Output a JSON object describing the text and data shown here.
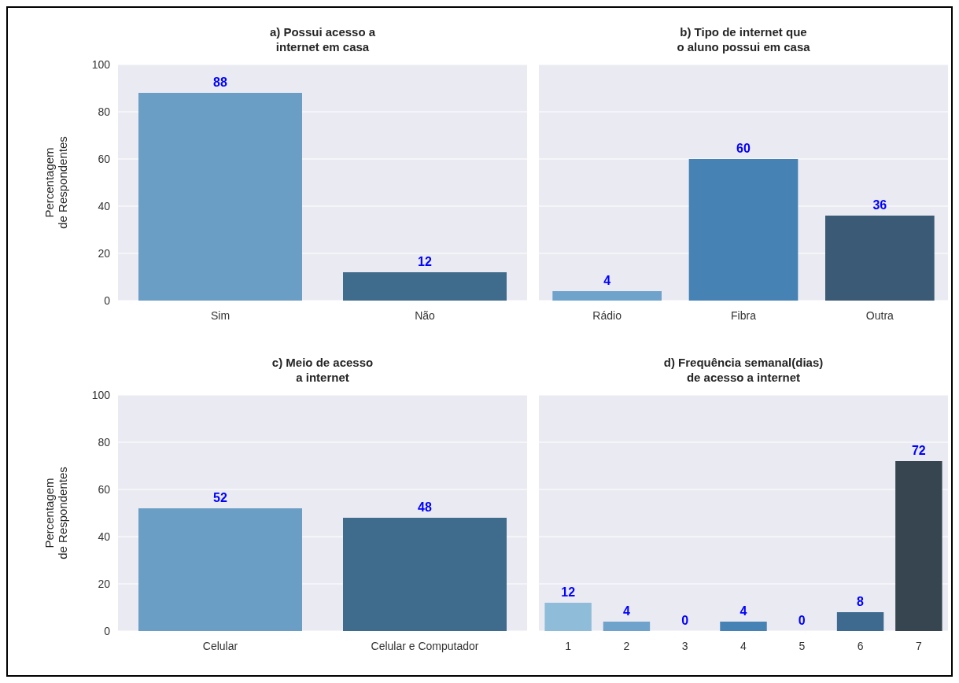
{
  "chart_data": [
    {
      "type": "bar",
      "title": "a) Possui acesso a\ninternet em casa",
      "ylabel": "Percentagem\nde Respondentes",
      "categories": [
        "Sim",
        "Não"
      ],
      "values": [
        88,
        12
      ],
      "colors": [
        "#6a9ec5",
        "#3f6b8c"
      ],
      "ylim": [
        0,
        100
      ],
      "yticks": [
        0,
        20,
        40,
        60,
        80,
        100
      ],
      "grid": "y",
      "data_labels": true
    },
    {
      "type": "bar",
      "title": "b) Tipo de internet que\no aluno possui em casa",
      "categories": [
        "Rádio",
        "Fibra",
        "Outra"
      ],
      "values": [
        4,
        60,
        36
      ],
      "colors": [
        "#6fa3cc",
        "#4682b4",
        "#3a5a75"
      ],
      "ylim": [
        0,
        100
      ],
      "yticks": [
        0,
        20,
        40,
        60,
        80,
        100
      ],
      "grid": "y",
      "data_labels": true,
      "tick_labels": "x"
    },
    {
      "type": "bar",
      "title": "c) Meio de acesso\na internet",
      "ylabel": "Percentagem\nde Respondentes",
      "categories": [
        "Celular",
        "Celular e Computador"
      ],
      "values": [
        52,
        48
      ],
      "colors": [
        "#6a9ec5",
        "#3f6b8c"
      ],
      "ylim": [
        0,
        100
      ],
      "yticks": [
        0,
        20,
        40,
        60,
        80,
        100
      ],
      "grid": "y",
      "data_labels": true
    },
    {
      "type": "bar",
      "title": "d) Frequência semanal(dias)\nde acesso a internet",
      "categories": [
        "1",
        "2",
        "3",
        "4",
        "5",
        "6",
        "7"
      ],
      "values": [
        12,
        4,
        0,
        4,
        0,
        8,
        72
      ],
      "colors": [
        "#8fbcd9",
        "#6fa3cc",
        "#5a93c0",
        "#4682b4",
        "#41729b",
        "#3d6a8e",
        "#36454f"
      ],
      "ylim": [
        0,
        100
      ],
      "yticks": [
        0,
        20,
        40,
        60,
        80,
        100
      ],
      "grid": "y",
      "data_labels": true,
      "tick_labels": "x"
    }
  ]
}
